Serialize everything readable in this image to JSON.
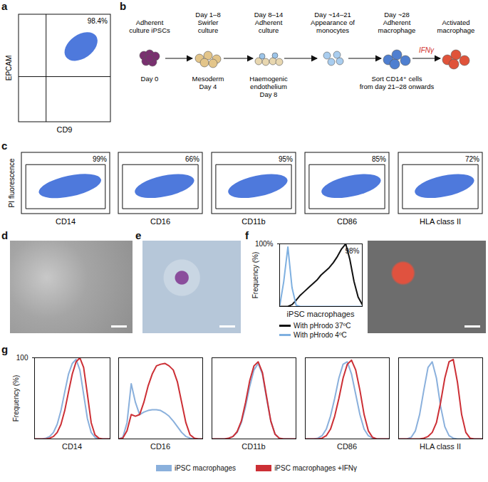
{
  "chart_data": [
    {
      "type": "scatter",
      "panel": "a",
      "x_label": "CD9",
      "y_label": "EPCAM",
      "tick_labels": false,
      "annotations": [
        {
          "value": 98.4,
          "label": "98.4%"
        }
      ],
      "color": "#2f62d6"
    },
    {
      "type": "scatter",
      "panel": "c",
      "x_label": "CD14",
      "y_label": "PI fluorescence",
      "tick_labels": false,
      "annotations": [
        {
          "value": 99,
          "label": "99%"
        }
      ],
      "color": "#2f62d6"
    },
    {
      "type": "scatter",
      "x_label": "CD16",
      "tick_labels": false,
      "annotations": [
        {
          "value": 66,
          "label": "66%"
        }
      ],
      "color": "#2f62d6"
    },
    {
      "type": "scatter",
      "x_label": "CD11b",
      "tick_labels": false,
      "annotations": [
        {
          "value": 95,
          "label": "95%"
        }
      ],
      "color": "#2f62d6"
    },
    {
      "type": "scatter",
      "x_label": "CD86",
      "tick_labels": false,
      "annotations": [
        {
          "value": 85,
          "label": "85%"
        }
      ],
      "color": "#2f62d6"
    },
    {
      "type": "scatter",
      "x_label": "HLA class II",
      "tick_labels": false,
      "annotations": [
        {
          "value": 72,
          "label": "72%"
        }
      ],
      "color": "#2f62d6"
    },
    {
      "type": "line",
      "panel": "f",
      "x_label": "iPSC macrophages",
      "y_label": "Frequency (%)",
      "xlim": [
        0,
        100
      ],
      "ylim": [
        0,
        100
      ],
      "yticks": [
        {
          "value": 100,
          "label": "100%"
        }
      ],
      "tick_labels": "y",
      "legend": "bottom",
      "annotations": [
        {
          "value": 98,
          "label": "98%"
        }
      ],
      "x": [
        0,
        5,
        10,
        15,
        20,
        25,
        30,
        35,
        40,
        45,
        50,
        55,
        60,
        65,
        70,
        75,
        80,
        85,
        90,
        95,
        100
      ],
      "series": [
        {
          "name": "With pHrodo 37ºC",
          "color": "#111111",
          "values": [
            0,
            0,
            0,
            3,
            10,
            18,
            24,
            30,
            36,
            42,
            50,
            56,
            62,
            70,
            80,
            92,
            100,
            75,
            40,
            15,
            3
          ]
        },
        {
          "name": "With pHrodo 4ºC",
          "color": "#7fb0e0",
          "values": [
            0,
            40,
            95,
            30,
            2,
            0,
            0,
            0,
            0,
            0,
            0,
            0,
            0,
            0,
            0,
            0,
            0,
            0,
            0,
            0,
            0
          ]
        }
      ]
    },
    {
      "type": "line",
      "panel": "g",
      "x_label": "CD14",
      "y_label": "Frequency (%)",
      "xlim": [
        0,
        100
      ],
      "ylim": [
        0,
        100
      ],
      "yticks": [
        100
      ],
      "tick_labels": "y",
      "legend": "bottom",
      "x": [
        0,
        5,
        10,
        15,
        20,
        25,
        30,
        35,
        40,
        45,
        50,
        55,
        60,
        65,
        70,
        75,
        80,
        85,
        90,
        95,
        100
      ],
      "series": [
        {
          "name": "iPSC macrophages",
          "color": "#8ab0dc",
          "values": [
            0,
            0,
            0,
            1,
            3,
            8,
            18,
            35,
            58,
            80,
            93,
            98,
            85,
            55,
            25,
            8,
            2,
            0,
            0,
            0,
            0
          ]
        },
        {
          "name": "iPSC macrophages +IFNγ",
          "color": "#cc2f35",
          "values": [
            0,
            0,
            0,
            0,
            1,
            3,
            8,
            18,
            35,
            58,
            80,
            95,
            100,
            88,
            55,
            20,
            5,
            1,
            0,
            0,
            0
          ]
        }
      ]
    },
    {
      "type": "line",
      "x_label": "CD16",
      "xlim": [
        0,
        100
      ],
      "ylim": [
        0,
        100
      ],
      "tick_labels": false,
      "x": [
        0,
        5,
        10,
        15,
        20,
        25,
        30,
        35,
        40,
        45,
        50,
        55,
        60,
        65,
        70,
        75,
        80,
        85,
        90,
        95,
        100
      ],
      "series": [
        {
          "name": "iPSC macrophages",
          "color": "#8ab0dc",
          "values": [
            0,
            2,
            20,
            68,
            45,
            30,
            33,
            35,
            36,
            36,
            35,
            32,
            28,
            22,
            15,
            8,
            3,
            1,
            0,
            0,
            0
          ]
        },
        {
          "name": "iPSC macrophages +IFNγ",
          "color": "#cc2f35",
          "values": [
            0,
            1,
            10,
            30,
            28,
            30,
            45,
            65,
            80,
            90,
            92,
            93,
            90,
            85,
            70,
            45,
            20,
            5,
            1,
            0,
            0
          ]
        }
      ]
    },
    {
      "type": "line",
      "x_label": "CD11b",
      "xlim": [
        0,
        100
      ],
      "ylim": [
        0,
        100
      ],
      "tick_labels": false,
      "x": [
        0,
        5,
        10,
        15,
        20,
        25,
        30,
        35,
        40,
        45,
        50,
        55,
        60,
        65,
        70,
        75,
        80,
        85,
        90,
        95,
        100
      ],
      "series": [
        {
          "name": "iPSC macrophages",
          "color": "#8ab0dc",
          "values": [
            0,
            0,
            0,
            0,
            1,
            3,
            8,
            20,
            40,
            65,
            85,
            93,
            80,
            50,
            22,
            6,
            1,
            0,
            0,
            0,
            0
          ]
        },
        {
          "name": "iPSC macrophages +IFNγ",
          "color": "#cc2f35",
          "values": [
            0,
            0,
            0,
            0,
            1,
            3,
            9,
            22,
            45,
            72,
            90,
            95,
            82,
            52,
            22,
            6,
            1,
            0,
            0,
            0,
            0
          ]
        }
      ]
    },
    {
      "type": "line",
      "x_label": "CD86",
      "xlim": [
        0,
        100
      ],
      "ylim": [
        0,
        100
      ],
      "tick_labels": false,
      "x": [
        0,
        5,
        10,
        15,
        20,
        25,
        30,
        35,
        40,
        45,
        50,
        55,
        60,
        65,
        70,
        75,
        80,
        85,
        90,
        95,
        100
      ],
      "series": [
        {
          "name": "iPSC macrophages",
          "color": "#8ab0dc",
          "values": [
            0,
            0,
            0,
            1,
            4,
            12,
            28,
            50,
            75,
            92,
            95,
            80,
            55,
            30,
            12,
            4,
            1,
            0,
            0,
            0,
            0
          ]
        },
        {
          "name": "iPSC macrophages +IFNγ",
          "color": "#cc2f35",
          "values": [
            0,
            0,
            0,
            0,
            1,
            4,
            12,
            28,
            50,
            75,
            92,
            97,
            85,
            60,
            30,
            10,
            2,
            0,
            0,
            0,
            0
          ]
        }
      ]
    },
    {
      "type": "line",
      "x_label": "HLA class II",
      "xlim": [
        0,
        100
      ],
      "ylim": [
        0,
        100
      ],
      "tick_labels": false,
      "x": [
        0,
        5,
        10,
        15,
        20,
        25,
        30,
        35,
        40,
        45,
        50,
        55,
        60,
        65,
        70,
        75,
        80,
        85,
        90,
        95,
        100
      ],
      "series": [
        {
          "name": "iPSC macrophages",
          "color": "#8ab0dc",
          "values": [
            0,
            0,
            0,
            2,
            10,
            30,
            60,
            88,
            95,
            75,
            40,
            15,
            4,
            1,
            0,
            0,
            0,
            0,
            0,
            0,
            0
          ]
        },
        {
          "name": "iPSC macrophages +IFNγ",
          "color": "#cc2f35",
          "values": [
            0,
            0,
            0,
            0,
            0,
            0,
            1,
            3,
            8,
            20,
            45,
            75,
            95,
            98,
            70,
            30,
            8,
            1,
            0,
            0,
            0
          ]
        }
      ]
    }
  ],
  "diagram": {
    "panel": "b",
    "stages": [
      {
        "top": [
          "Adherent",
          "culture iPSCs"
        ],
        "bottom": [
          "Day 0"
        ]
      },
      {
        "top": [
          "Day 1–8",
          "Swirler",
          "culture"
        ],
        "bottom": [
          "Mesoderm",
          "Day 4"
        ]
      },
      {
        "top": [
          "Day 8–14",
          "Adherent",
          "culture"
        ],
        "bottom": [
          "Haemogenic",
          "endothelium",
          "Day 8"
        ]
      },
      {
        "top": [
          "Day ~14–21",
          "Appearance of",
          "monocytes"
        ]
      },
      {
        "top": [
          "Day ~28",
          "Adherent",
          "macrophage"
        ],
        "bottom": [
          "Sort CD14⁺ cells",
          "from day 21–28 onwards"
        ]
      },
      {
        "top": [
          "Activated",
          "macrophage"
        ]
      }
    ],
    "arrow_label": "IFNγ"
  },
  "images": [
    {
      "panel": "d"
    },
    {
      "panel": "e"
    }
  ]
}
